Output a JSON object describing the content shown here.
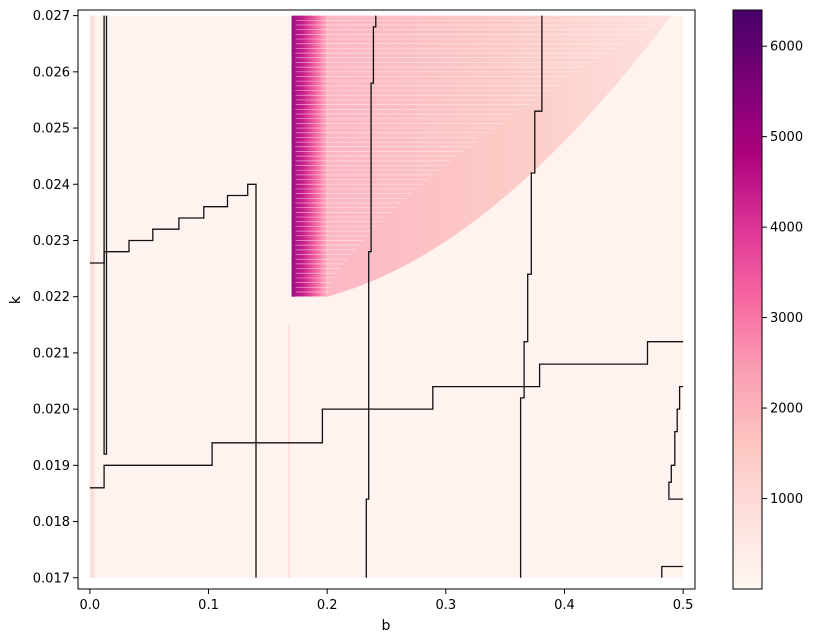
{
  "chart_data": {
    "type": "heatmap",
    "title": "",
    "xlabel": "b",
    "ylabel": "k",
    "xlim": [
      -0.01,
      0.51
    ],
    "ylim": [
      0.0168,
      0.0271
    ],
    "x_ticks": [
      "0.0",
      "0.1",
      "0.2",
      "0.3",
      "0.4",
      "0.5"
    ],
    "y_ticks": [
      "0.017",
      "0.018",
      "0.019",
      "0.020",
      "0.021",
      "0.022",
      "0.023",
      "0.024",
      "0.025",
      "0.026",
      "0.027"
    ],
    "colormap": "RdPu",
    "colorbar": {
      "range": [
        0,
        6400
      ],
      "ticks": [
        "1000",
        "2000",
        "3000",
        "4000",
        "5000",
        "6000"
      ]
    },
    "heatmap_regions": [
      {
        "desc": "background low value",
        "x": [
          0.0,
          0.5
        ],
        "y": [
          0.017,
          0.027
        ],
        "value": 150
      },
      {
        "desc": "narrow strip near b=0",
        "x": [
          0.0,
          0.004
        ],
        "y": [
          0.017,
          0.027
        ],
        "value": 1100
      },
      {
        "desc": "dense band",
        "x": [
          0.17,
          0.2
        ],
        "y": [
          0.022,
          0.027
        ],
        "value": 5000
      },
      {
        "desc": "fan region",
        "x": [
          0.2,
          0.49
        ],
        "y": [
          0.022,
          0.027
        ],
        "value": 1400
      }
    ],
    "contour_lines": [
      [
        [
          0.0,
          0.0226
        ],
        [
          0.012,
          0.0226
        ],
        [
          0.012,
          0.0228
        ],
        [
          0.033,
          0.0228
        ],
        [
          0.033,
          0.023
        ],
        [
          0.053,
          0.023
        ],
        [
          0.053,
          0.0232
        ],
        [
          0.075,
          0.0232
        ],
        [
          0.075,
          0.0234
        ],
        [
          0.096,
          0.0234
        ],
        [
          0.096,
          0.0236
        ],
        [
          0.116,
          0.0236
        ],
        [
          0.116,
          0.0238
        ],
        [
          0.133,
          0.0238
        ],
        [
          0.133,
          0.024
        ],
        [
          0.14,
          0.024
        ],
        [
          0.14,
          0.017
        ]
      ],
      [
        [
          0.012,
          0.027
        ],
        [
          0.012,
          0.0192
        ],
        [
          0.014,
          0.0192
        ],
        [
          0.014,
          0.027
        ]
      ],
      [
        [
          0.0,
          0.0186
        ],
        [
          0.012,
          0.0186
        ],
        [
          0.012,
          0.019
        ],
        [
          0.103,
          0.019
        ],
        [
          0.103,
          0.0194
        ],
        [
          0.196,
          0.0194
        ],
        [
          0.196,
          0.02
        ],
        [
          0.289,
          0.02
        ],
        [
          0.289,
          0.0204
        ],
        [
          0.379,
          0.0204
        ],
        [
          0.379,
          0.0208
        ],
        [
          0.47,
          0.0208
        ],
        [
          0.47,
          0.0212
        ],
        [
          0.5,
          0.0212
        ]
      ],
      [
        [
          0.233,
          0.017
        ],
        [
          0.233,
          0.0184
        ],
        [
          0.235,
          0.0184
        ],
        [
          0.235,
          0.0228
        ],
        [
          0.237,
          0.0228
        ],
        [
          0.237,
          0.0258
        ],
        [
          0.239,
          0.0258
        ],
        [
          0.239,
          0.0268
        ],
        [
          0.241,
          0.0268
        ],
        [
          0.241,
          0.027
        ]
      ],
      [
        [
          0.363,
          0.017
        ],
        [
          0.363,
          0.0202
        ],
        [
          0.366,
          0.0202
        ],
        [
          0.366,
          0.0212
        ],
        [
          0.369,
          0.0212
        ],
        [
          0.369,
          0.0224
        ],
        [
          0.372,
          0.0224
        ],
        [
          0.372,
          0.0242
        ],
        [
          0.375,
          0.0242
        ],
        [
          0.375,
          0.0253
        ],
        [
          0.381,
          0.0253
        ],
        [
          0.381,
          0.027
        ]
      ],
      [
        [
          0.482,
          0.017
        ],
        [
          0.482,
          0.0172
        ],
        [
          0.5,
          0.0172
        ]
      ],
      [
        [
          0.5,
          0.0184
        ],
        [
          0.488,
          0.0184
        ],
        [
          0.488,
          0.0187
        ],
        [
          0.49,
          0.0187
        ],
        [
          0.49,
          0.019
        ],
        [
          0.493,
          0.019
        ],
        [
          0.493,
          0.0196
        ],
        [
          0.495,
          0.0196
        ],
        [
          0.495,
          0.02
        ],
        [
          0.497,
          0.02
        ],
        [
          0.497,
          0.0204
        ],
        [
          0.5,
          0.0204
        ]
      ]
    ]
  }
}
